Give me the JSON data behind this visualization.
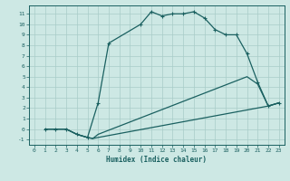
{
  "xlabel": "Humidex (Indice chaleur)",
  "xlim": [
    -0.5,
    23.5
  ],
  "ylim": [
    -1.5,
    11.8
  ],
  "xticks": [
    0,
    1,
    2,
    3,
    4,
    5,
    6,
    7,
    8,
    9,
    10,
    11,
    12,
    13,
    14,
    15,
    16,
    17,
    18,
    19,
    20,
    21,
    22,
    23
  ],
  "yticks": [
    -1,
    0,
    1,
    2,
    3,
    4,
    5,
    6,
    7,
    8,
    9,
    10,
    11
  ],
  "background_color": "#cde8e4",
  "grid_color": "#a8ccc8",
  "line_color": "#1a6060",
  "line1_x": [
    1,
    2,
    3,
    4,
    5,
    6,
    7,
    10,
    11,
    12,
    13,
    14,
    15,
    16,
    17,
    18,
    19,
    20,
    21,
    22,
    23
  ],
  "line1_y": [
    0,
    0,
    0,
    -0.5,
    -0.8,
    2.5,
    8.2,
    10.0,
    11.2,
    10.8,
    11.0,
    11.0,
    11.2,
    10.6,
    9.5,
    9.0,
    9.0,
    7.2,
    4.5,
    2.2,
    2.5
  ],
  "line2_x": [
    1,
    2,
    3,
    4,
    5,
    5.5,
    6,
    22,
    23
  ],
  "line2_y": [
    0,
    0,
    0,
    -0.5,
    -0.8,
    -0.9,
    -0.8,
    2.2,
    2.5
  ],
  "line3_x": [
    1,
    2,
    3,
    4,
    5,
    5.5,
    6,
    20,
    21,
    22,
    23
  ],
  "line3_y": [
    0,
    0,
    0,
    -0.5,
    -0.8,
    -0.9,
    -0.5,
    5.0,
    4.3,
    2.2,
    2.5
  ]
}
